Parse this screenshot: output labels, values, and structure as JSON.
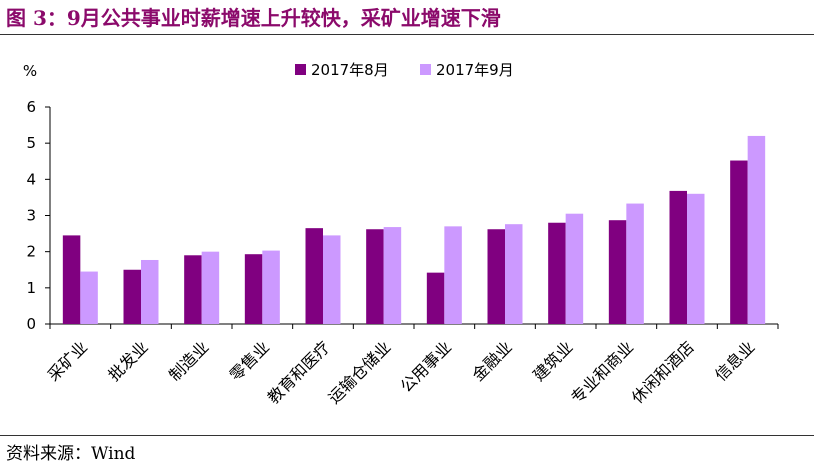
{
  "page": {
    "figure_title": "图 3：9月公共事业时薪增速上升较快，采矿业增速下滑",
    "source": "资料来源：Wind"
  },
  "chart_data": {
    "type": "bar",
    "title": "",
    "ylabel": "%",
    "xlabel": "",
    "ylim": [
      0,
      6
    ],
    "yticks": [
      0,
      1,
      2,
      3,
      4,
      5,
      6
    ],
    "grid": false,
    "legend_position": "top-center",
    "categories": [
      "采矿业",
      "批发业",
      "制造业",
      "零售业",
      "教育和医疗",
      "运输仓储业",
      "公用事业",
      "金融业",
      "建筑业",
      "专业和商业",
      "休闲和酒店",
      "信息业"
    ],
    "series": [
      {
        "name": "2017年8月",
        "color": "#800080",
        "values": [
          2.45,
          1.5,
          1.9,
          1.93,
          2.65,
          2.62,
          1.42,
          2.62,
          2.8,
          2.87,
          3.68,
          4.52
        ]
      },
      {
        "name": "2017年9月",
        "color": "#cc99ff",
        "values": [
          1.45,
          1.77,
          2.0,
          2.03,
          2.45,
          2.68,
          2.7,
          2.76,
          3.05,
          3.33,
          3.6,
          5.2
        ]
      }
    ]
  }
}
